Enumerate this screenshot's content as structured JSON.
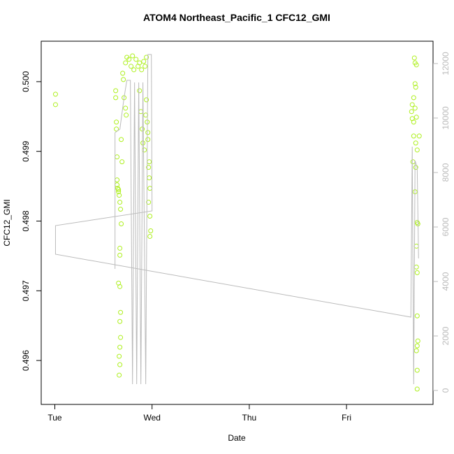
{
  "chart_data": {
    "type": "scatter",
    "title": "ATOM4 Northeast_Pacific_1 CFC12_GMI",
    "xlabel": "Date",
    "ylabel": "CFC12_GMI",
    "xlim": [
      -0.14,
      3.89
    ],
    "xticks": [
      {
        "value": 0,
        "label": "Tue"
      },
      {
        "value": 1,
        "label": "Wed"
      },
      {
        "value": 2,
        "label": "Thu"
      },
      {
        "value": 3,
        "label": "Fri"
      }
    ],
    "ylim": [
      0.49537,
      0.50058
    ],
    "yticks": [
      0.496,
      0.497,
      0.498,
      0.499,
      {
        "value": 0.5,
        "label": "0.500"
      }
    ],
    "y2lim": [
      -513,
      12820
    ],
    "y2ticks": [
      0,
      2000,
      4000,
      6000,
      8000,
      10000,
      12000
    ],
    "series": [
      {
        "color": "#aef01e",
        "x": [
          0.007,
          0.007,
          0.626,
          0.626,
          0.633,
          0.633,
          0.64,
          0.64,
          0.64,
          0.647,
          0.655,
          0.655,
          0.662,
          0.669,
          0.676,
          0.683,
          0.669,
          0.669,
          0.655,
          0.669,
          0.676,
          0.669,
          0.676,
          0.669,
          0.662,
          0.669,
          0.662,
          0.683,
          0.691,
          0.698,
          0.705,
          0.712,
          0.727,
          0.741,
          0.763,
          0.784,
          0.799,
          0.813,
          0.835,
          0.856,
          0.871,
          0.892,
          0.914,
          0.928,
          0.942,
          0.727,
          0.734,
          0.871,
          0.885,
          0.899,
          0.906,
          0.921,
          0.935,
          0.942,
          0.95,
          0.957,
          0.964,
          0.971,
          0.978,
          0.964,
          0.978,
          0.986,
          0.978,
          0.971,
          0.957,
          3.698,
          3.705,
          3.719,
          3.705,
          3.712,
          3.691,
          3.676,
          3.669,
          3.676,
          3.691,
          3.719,
          3.705,
          3.691,
          3.712,
          3.727,
          3.748,
          3.683,
          3.712,
          3.705,
          3.727,
          3.734,
          3.719,
          3.719,
          3.727,
          3.727,
          3.734,
          3.727,
          3.719,
          3.727,
          3.727
        ],
        "values": [
          0.49982,
          0.49967,
          0.49987,
          0.49977,
          0.49942,
          0.49932,
          0.49892,
          0.49859,
          0.49852,
          0.49847,
          0.49845,
          0.49842,
          0.49837,
          0.49827,
          0.49817,
          0.49796,
          0.49761,
          0.49751,
          0.49711,
          0.49706,
          0.49669,
          0.49656,
          0.49633,
          0.49619,
          0.49606,
          0.49594,
          0.49579,
          0.49917,
          0.49885,
          0.50012,
          0.50003,
          0.49977,
          0.50027,
          0.50035,
          0.50032,
          0.50022,
          0.50037,
          0.50017,
          0.50032,
          0.50022,
          0.50027,
          0.50017,
          0.50029,
          0.50022,
          0.50035,
          0.49962,
          0.49952,
          0.49987,
          0.49957,
          0.49932,
          0.49912,
          0.49902,
          0.49952,
          0.49974,
          0.49942,
          0.49927,
          0.49877,
          0.49862,
          0.49847,
          0.49827,
          0.49807,
          0.49786,
          0.49778,
          0.49885,
          0.49917,
          0.50034,
          0.50027,
          0.50024,
          0.49997,
          0.49992,
          0.49977,
          0.49967,
          0.49957,
          0.49947,
          0.49942,
          0.49949,
          0.49962,
          0.49922,
          0.49912,
          0.49902,
          0.49922,
          0.49885,
          0.49877,
          0.49842,
          0.49798,
          0.49796,
          0.49764,
          0.49734,
          0.49726,
          0.49664,
          0.49628,
          0.49621,
          0.49614,
          0.49586,
          0.49559
        ]
      },
      {
        "color": "#bbbbbb",
        "axis": "y2",
        "style": "line",
        "x": [
          0.619,
          0.619,
          0.669,
          0.712,
          0.741,
          0.777,
          0.799,
          0.82,
          0.842,
          0.863,
          0.885,
          0.906,
          0.935,
          0.957,
          0.993,
          1.0,
          0.007,
          0.007,
          3.662,
          3.676,
          3.691,
          3.705,
          3.727,
          3.741
        ],
        "values": [
          4462,
          9462,
          9590,
          10744,
          11385,
          11385,
          231,
          11308,
          231,
          11308,
          231,
          11308,
          231,
          12333,
          12333,
          6590,
          6051,
          5000,
          2692,
          8949,
          231,
          8436,
          8179,
          4846
        ]
      }
    ]
  }
}
